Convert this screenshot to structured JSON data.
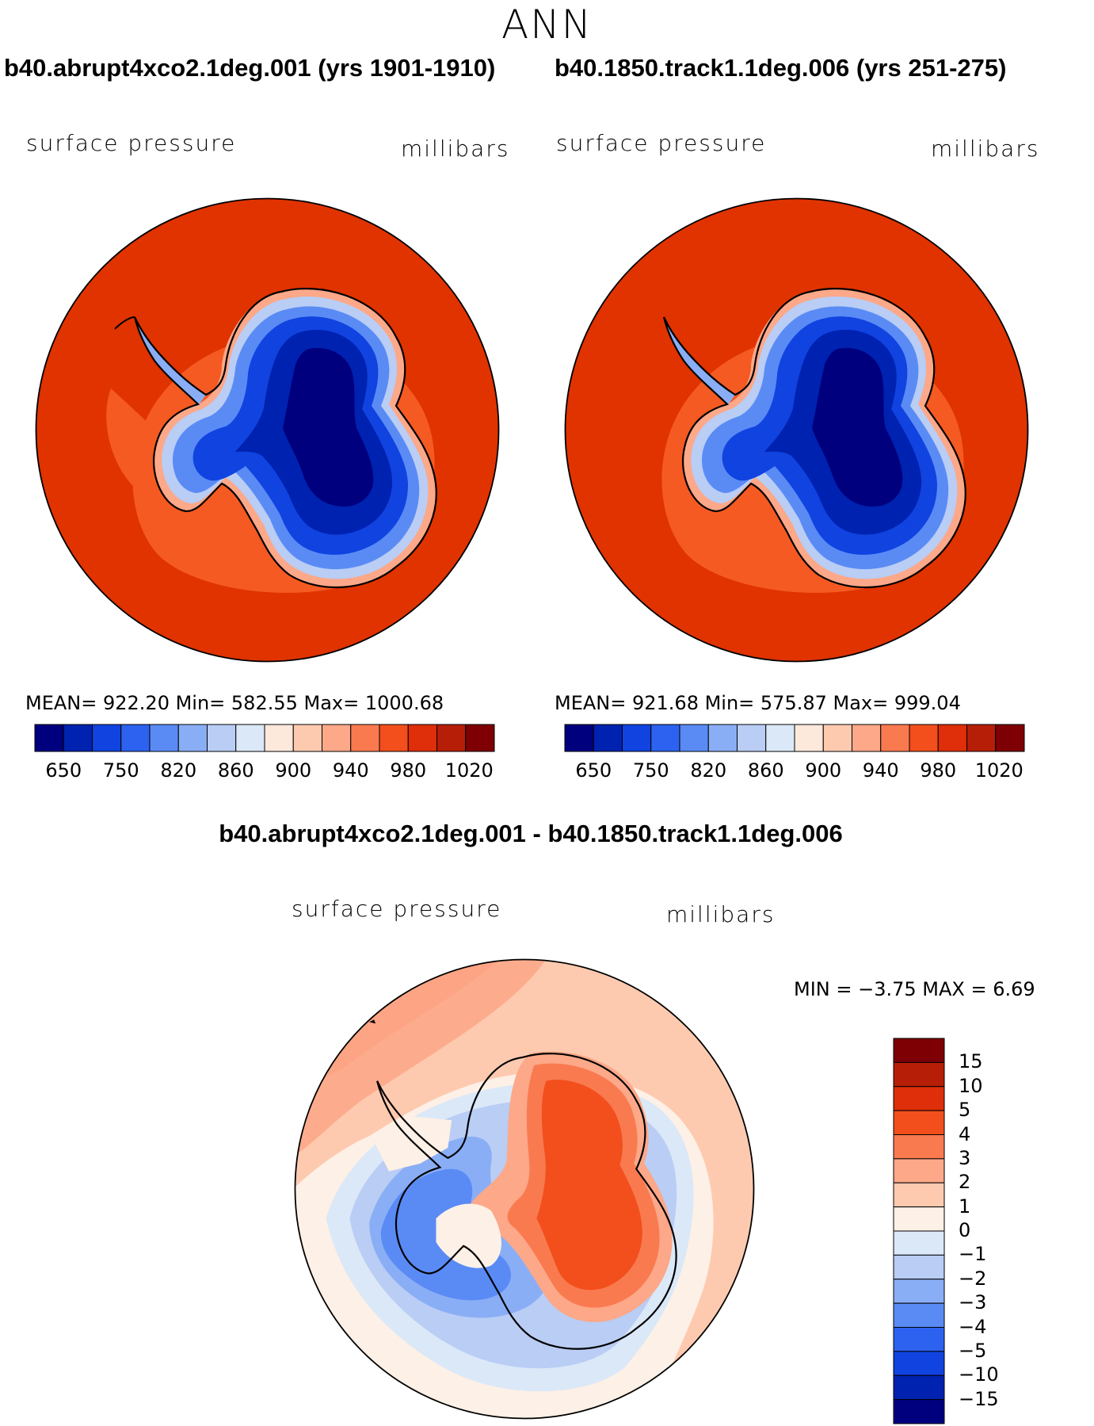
{
  "figure": {
    "season": "ANN"
  },
  "panels": [
    {
      "case_title": "b40.abrupt4xco2.1deg.001 (yrs 1901-1910)",
      "variable": "surface pressure",
      "units": "millibars",
      "stats": "MEAN= 922.20   Min= 582.55   Max= 1000.68"
    },
    {
      "case_title": "b40.1850.track1.1deg.006 (yrs 251-275)",
      "variable": "surface pressure",
      "units": "millibars",
      "stats": "MEAN= 921.68   Min= 575.87   Max= 999.04"
    }
  ],
  "difference": {
    "title": "b40.abrupt4xco2.1deg.001 - b40.1850.track1.1deg.006",
    "variable": "surface pressure",
    "units": "millibars",
    "stats": "MIN =   −3.75  MAX =     6.69"
  },
  "colorbar": {
    "colors": [
      "#00007f",
      "#0022b0",
      "#1043e0",
      "#2d62f0",
      "#5a8bf5",
      "#8aaef5",
      "#b9cdf5",
      "#dbe8f8",
      "#fde8dc",
      "#fdcab0",
      "#fca889",
      "#fa7a50",
      "#f24f1c",
      "#de2e0a",
      "#b61e08",
      "#7e0005"
    ],
    "labels": [
      "650",
      "750",
      "820",
      "860",
      "900",
      "940",
      "980",
      "1020"
    ]
  },
  "diff_colorbar": {
    "colors": [
      "#00007f",
      "#0022b0",
      "#1043e0",
      "#2d62f0",
      "#5a8bf5",
      "#8aaef5",
      "#b9cdf5",
      "#dbe8f8",
      "#fdf0e6",
      "#fdcab0",
      "#fca889",
      "#fa7a50",
      "#f24f1c",
      "#de2e0a",
      "#b61e08",
      "#7e0005"
    ],
    "labels": [
      "15",
      "10",
      "5",
      "4",
      "3",
      "2",
      "1",
      "0",
      "−1",
      "−2",
      "−3",
      "−4",
      "−5",
      "−10",
      "−15"
    ]
  },
  "legend_colors": {
    "ocean_field": "#e03300",
    "ocean_ring": "#f55a22",
    "coast_band": "#fca889",
    "high_plateau": "#00007f"
  }
}
